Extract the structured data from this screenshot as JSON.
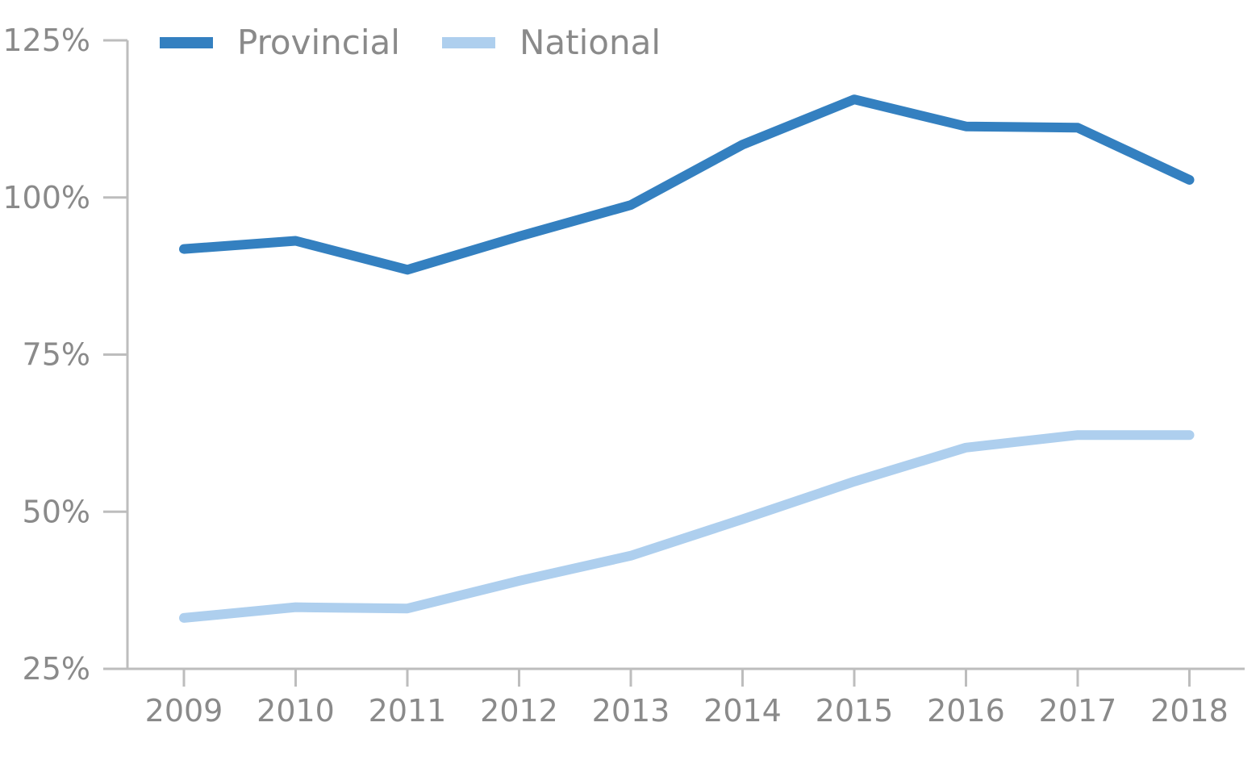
{
  "chart_data": {
    "type": "line",
    "title": "",
    "xlabel": "",
    "ylabel": "",
    "categories": [
      "2009",
      "2010",
      "2011",
      "2012",
      "2013",
      "2014",
      "2015",
      "2016",
      "2017",
      "2018"
    ],
    "series": [
      {
        "name": "Provincial",
        "color": "#3480c0",
        "values": [
          91.8,
          93.1,
          88.5,
          93.8,
          98.8,
          108.4,
          115.6,
          111.3,
          111.1,
          102.8
        ]
      },
      {
        "name": "National",
        "color": "#aecfee",
        "values": [
          33.1,
          34.8,
          34.6,
          39.0,
          43.0,
          48.8,
          54.8,
          60.2,
          62.2,
          62.2
        ]
      }
    ],
    "ylim": [
      25,
      125
    ],
    "yticks": [
      {
        "value": 25,
        "label": "25%"
      },
      {
        "value": 50,
        "label": "50%"
      },
      {
        "value": 75,
        "label": "75%"
      },
      {
        "value": 100,
        "label": "100%"
      },
      {
        "value": 125,
        "label": "125%"
      }
    ],
    "grid": false,
    "legend": {
      "position": "top-left",
      "entries": [
        "Provincial",
        "National"
      ]
    },
    "axis_color": "#bdbdbd",
    "text_color": "#8a8a8a"
  }
}
